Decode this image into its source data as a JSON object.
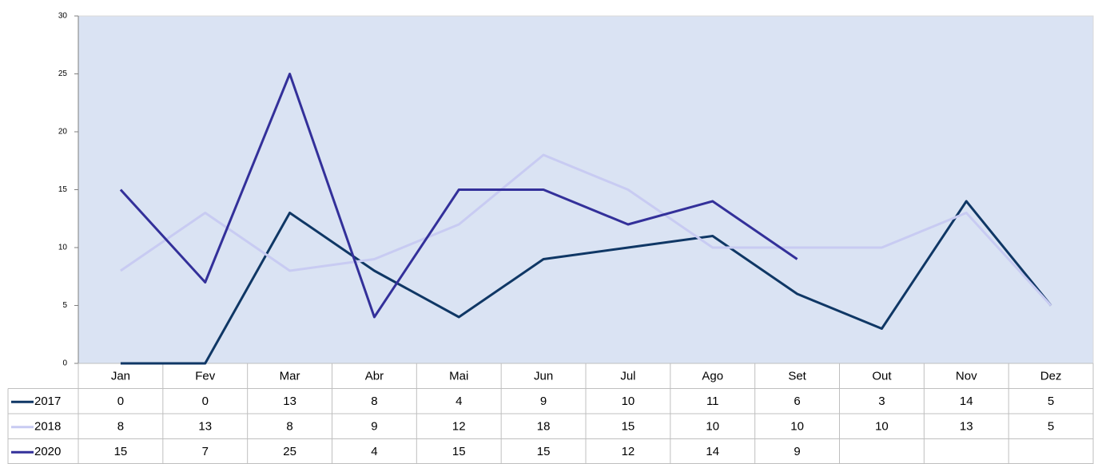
{
  "chart_data": {
    "type": "line",
    "categories": [
      "Jan",
      "Fev",
      "Mar",
      "Abr",
      "Mai",
      "Jun",
      "Jul",
      "Ago",
      "Set",
      "Out",
      "Nov",
      "Dez"
    ],
    "series": [
      {
        "name": "2017",
        "color": "#0f3765",
        "values": [
          0,
          0,
          13,
          8,
          4,
          9,
          10,
          11,
          6,
          3,
          14,
          5
        ]
      },
      {
        "name": "2018",
        "color": "#c8cbf2",
        "values": [
          8,
          13,
          8,
          9,
          12,
          18,
          15,
          10,
          10,
          10,
          13,
          5
        ]
      },
      {
        "name": "2020",
        "color": "#33309a",
        "values": [
          15,
          7,
          25,
          4,
          15,
          15,
          12,
          14,
          9,
          null,
          null,
          null
        ]
      }
    ],
    "ylim": [
      0,
      30
    ],
    "yticks": [
      0,
      5,
      10,
      15,
      20,
      25,
      30
    ],
    "plot_background": "#dae3f3"
  }
}
